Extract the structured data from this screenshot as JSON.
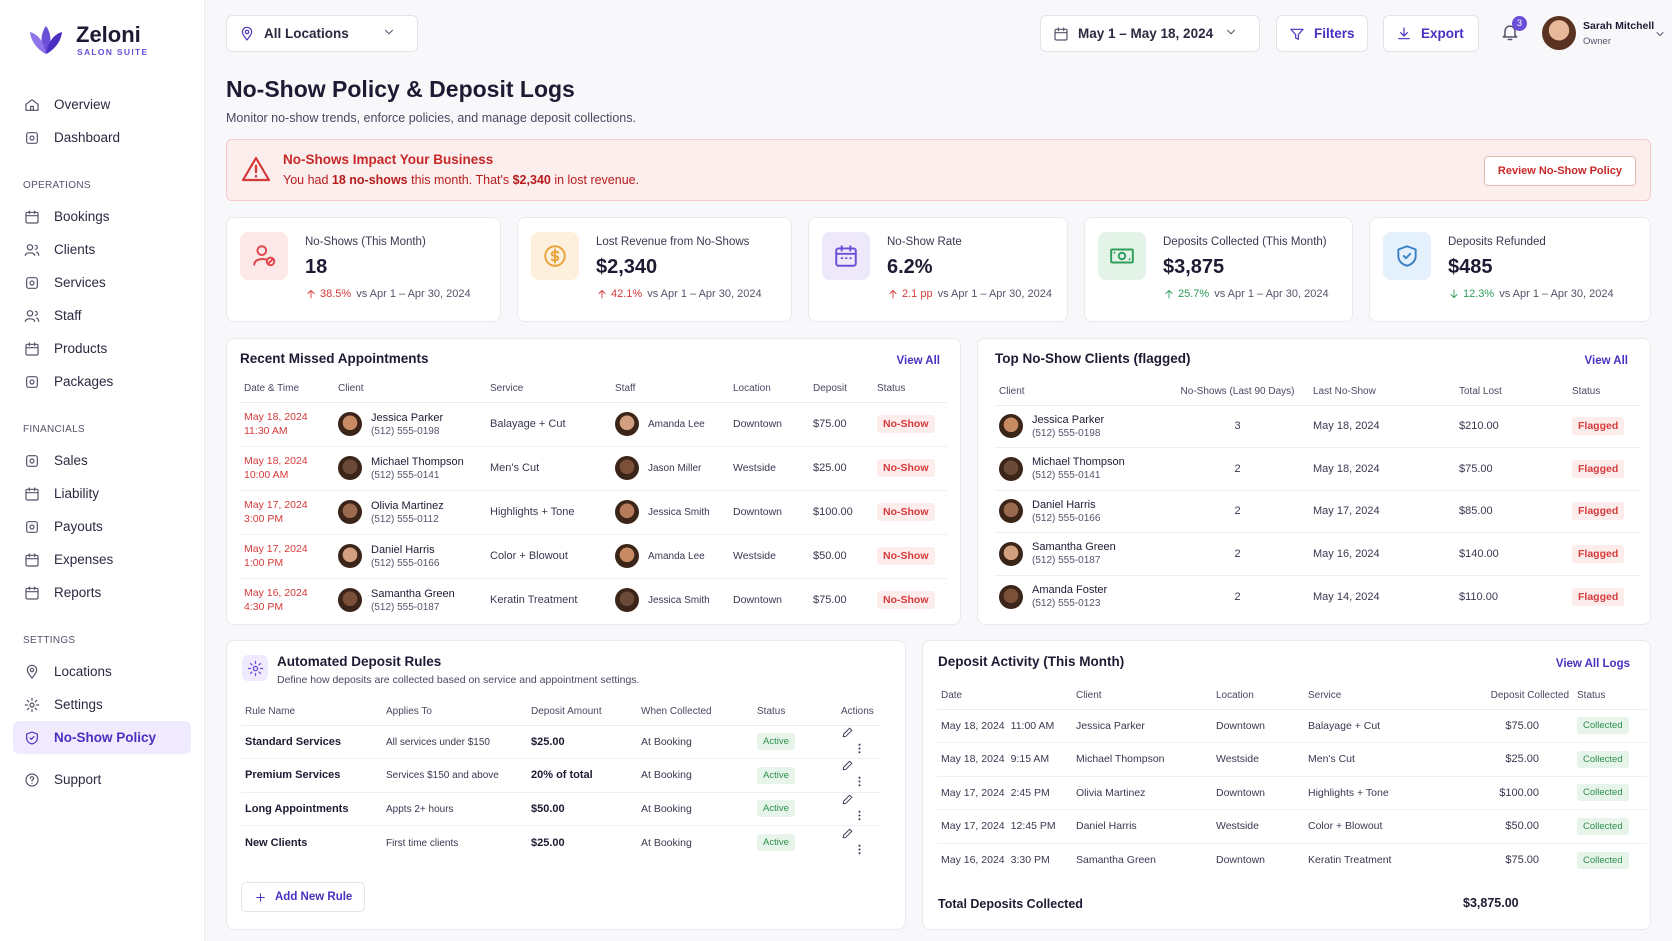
{
  "brand": {
    "name": "Zeloni",
    "tagline": "SALON SUITE"
  },
  "nav": {
    "groups": [
      {
        "items": [
          {
            "label": "Overview"
          },
          {
            "label": "Dashboard"
          }
        ]
      },
      {
        "title": "OPERATIONS",
        "items": [
          {
            "label": "Bookings"
          },
          {
            "label": "Clients"
          },
          {
            "label": "Services"
          },
          {
            "label": "Staff"
          },
          {
            "label": "Products"
          },
          {
            "label": "Packages"
          }
        ]
      },
      {
        "title": "FINANCIALS",
        "items": [
          {
            "label": "Sales"
          },
          {
            "label": "Liability"
          },
          {
            "label": "Payouts"
          },
          {
            "label": "Expenses"
          },
          {
            "label": "Reports"
          }
        ]
      },
      {
        "title": "SETTINGS",
        "items": [
          {
            "label": "Locations"
          },
          {
            "label": "Settings"
          },
          {
            "label": "No-Show Policy",
            "active": true
          }
        ]
      },
      {
        "items": [
          {
            "label": "Support"
          }
        ]
      }
    ]
  },
  "header": {
    "location": "All Locations",
    "date_range": "May 1 – May 18, 2024",
    "filters": "Filters",
    "export": "Export",
    "notifications": 3,
    "user": {
      "name": "Sarah Mitchell",
      "role": "Owner"
    }
  },
  "page": {
    "title": "No-Show Policy & Deposit Logs",
    "subtitle": "Monitor no-show trends, enforce policies, and manage deposit collections."
  },
  "alert": {
    "title": "No-Shows Impact Your Business",
    "message": [
      {
        "text": "You had "
      },
      {
        "text": "18 no-shows",
        "bold": true
      },
      {
        "text": " this month. That's "
      },
      {
        "text": "$2,340",
        "bold": true
      },
      {
        "text": " in lost revenue."
      }
    ],
    "button": "Review No-Show Policy"
  },
  "kpis": [
    {
      "label": "No-Shows (This Month)",
      "value": "18",
      "change": "38.5%",
      "trend": "up",
      "tone": "bad",
      "comparison": "vs Apr 1 – Apr 30, 2024"
    },
    {
      "label": "Lost Revenue from No-Shows",
      "value": "$2,340",
      "change": "42.1%",
      "trend": "up",
      "tone": "bad",
      "comparison": "vs Apr 1 – Apr 30, 2024"
    },
    {
      "label": "No-Show Rate",
      "value": "6.2%",
      "change": "2.1 pp",
      "trend": "up",
      "tone": "bad",
      "comparison": "vs Apr 1 – Apr 30, 2024"
    },
    {
      "label": "Deposits Collected (This Month)",
      "value": "$3,875",
      "change": "25.7%",
      "trend": "up",
      "tone": "good",
      "comparison": "vs Apr 1 – Apr 30, 2024"
    },
    {
      "label": "Deposits Refunded",
      "value": "$485",
      "change": "12.3%",
      "trend": "down",
      "tone": "good",
      "comparison": "vs Apr 1 – Apr 30, 2024"
    }
  ],
  "recent_missed": {
    "title": "Recent Missed Appointments",
    "link": "View All",
    "columns": [
      "Date & Time",
      "Client",
      "Service",
      "Staff",
      "Location",
      "Deposit",
      "Status"
    ],
    "rows": [
      {
        "date": "May 18, 2024",
        "time": "11:30 AM",
        "client": "Jessica Parker",
        "phone": "(512) 555-0198",
        "service": "Balayage + Cut",
        "staff": "Amanda Lee",
        "location": "Downtown",
        "deposit": "$75.00",
        "status": "No-Show"
      },
      {
        "date": "May 18, 2024",
        "time": "10:00 AM",
        "client": "Michael Thompson",
        "phone": "(512) 555-0141",
        "service": "Men's Cut",
        "staff": "Jason Miller",
        "location": "Westside",
        "deposit": "$25.00",
        "status": "No-Show"
      },
      {
        "date": "May 17, 2024",
        "time": "3:00 PM",
        "client": "Olivia Martinez",
        "phone": "(512) 555-0112",
        "service": "Highlights + Tone",
        "staff": "Jessica Smith",
        "location": "Downtown",
        "deposit": "$100.00",
        "status": "No-Show"
      },
      {
        "date": "May 17, 2024",
        "time": "1:00 PM",
        "client": "Daniel Harris",
        "phone": "(512) 555-0166",
        "service": "Color + Blowout",
        "staff": "Amanda Lee",
        "location": "Westside",
        "deposit": "$50.00",
        "status": "No-Show"
      },
      {
        "date": "May 16, 2024",
        "time": "4:30 PM",
        "client": "Samantha Green",
        "phone": "(512) 555-0187",
        "service": "Keratin Treatment",
        "staff": "Jessica Smith",
        "location": "Downtown",
        "deposit": "$75.00",
        "status": "No-Show"
      }
    ]
  },
  "top_clients": {
    "title": "Top No-Show Clients (flagged)",
    "link": "View All",
    "columns": [
      "Client",
      "No-Shows (Last 90 Days)",
      "Last No-Show",
      "Total Lost",
      "Status"
    ],
    "rows": [
      {
        "client": "Jessica Parker",
        "phone": "(512) 555-0198",
        "no_shows": "3",
        "last": "May 18, 2024",
        "total": "$210.00",
        "status": "Flagged"
      },
      {
        "client": "Michael Thompson",
        "phone": "(512) 555-0141",
        "no_shows": "2",
        "last": "May 18, 2024",
        "total": "$75.00",
        "status": "Flagged"
      },
      {
        "client": "Daniel Harris",
        "phone": "(512) 555-0166",
        "no_shows": "2",
        "last": "May 17, 2024",
        "total": "$85.00",
        "status": "Flagged"
      },
      {
        "client": "Samantha Green",
        "phone": "(512) 555-0187",
        "no_shows": "2",
        "last": "May 16, 2024",
        "total": "$140.00",
        "status": "Flagged"
      },
      {
        "client": "Amanda Foster",
        "phone": "(512) 555-0123",
        "no_shows": "2",
        "last": "May 14, 2024",
        "total": "$110.00",
        "status": "Flagged"
      }
    ]
  },
  "deposit_rules": {
    "title": "Automated Deposit Rules",
    "subtitle": "Define how deposits are collected based on service and appointment settings.",
    "columns": [
      "Rule Name",
      "Applies To",
      "Deposit Amount",
      "When Collected",
      "Status",
      "Actions"
    ],
    "rows": [
      {
        "name": "Standard Services",
        "applies": "All services under $150",
        "amount": "$25.00",
        "when": "At Booking",
        "status": "Active"
      },
      {
        "name": "Premium Services",
        "applies": "Services $150 and above",
        "amount": "20% of total",
        "when": "At Booking",
        "status": "Active"
      },
      {
        "name": "Long Appointments",
        "applies": "Appts 2+ hours",
        "amount": "$50.00",
        "when": "At Booking",
        "status": "Active"
      },
      {
        "name": "New Clients",
        "applies": "First time clients",
        "amount": "$25.00",
        "when": "At Booking",
        "status": "Active"
      }
    ],
    "button": "Add New Rule"
  },
  "deposit_activity": {
    "title": "Deposit Activity (This Month)",
    "link": "View All Logs",
    "columns": [
      "Date",
      "Client",
      "Location",
      "Service",
      "Deposit Collected",
      "Status"
    ],
    "rows": [
      {
        "date": "May 18, 2024",
        "time": "11:00 AM",
        "client": "Jessica Parker",
        "location": "Downtown",
        "service": "Balayage + Cut",
        "amount": "$75.00",
        "status": "Collected"
      },
      {
        "date": "May 18, 2024",
        "time": "9:15 AM",
        "client": "Michael Thompson",
        "location": "Westside",
        "service": "Men's Cut",
        "amount": "$25.00",
        "status": "Collected"
      },
      {
        "date": "May 17, 2024",
        "time": "2:45 PM",
        "client": "Olivia Martinez",
        "location": "Downtown",
        "service": "Highlights + Tone",
        "amount": "$100.00",
        "status": "Collected"
      },
      {
        "date": "May 17, 2024",
        "time": "12:45 PM",
        "client": "Daniel Harris",
        "location": "Westside",
        "service": "Color + Blowout",
        "amount": "$50.00",
        "status": "Collected"
      },
      {
        "date": "May 16, 2024",
        "time": "3:30 PM",
        "client": "Samantha Green",
        "location": "Downtown",
        "service": "Keratin Treatment",
        "amount": "$75.00",
        "status": "Collected"
      }
    ],
    "total_label": "Total Deposits Collected",
    "total_value": "$3,875.00"
  }
}
